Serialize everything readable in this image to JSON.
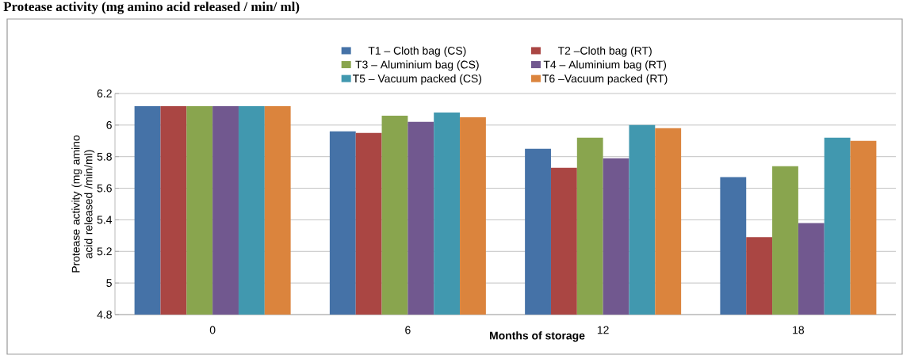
{
  "chart_data": {
    "type": "bar",
    "title": "Protease activity (mg amino acid released / min/ ml)",
    "xlabel": "Months of storage",
    "ylabel": "Protease activity (mg amino acid released /min/ml)",
    "categories": [
      "0",
      "6",
      "12",
      "18"
    ],
    "series": [
      {
        "name": "T1 – Cloth bag (CS)",
        "color": "#4572a7",
        "values": [
          6.12,
          5.96,
          5.85,
          5.67
        ]
      },
      {
        "name": "T2 –Cloth bag (RT)",
        "color": "#aa4643",
        "values": [
          6.12,
          5.95,
          5.73,
          5.29
        ]
      },
      {
        "name": "T3 – Aluminium bag (CS)",
        "color": "#89a54e",
        "values": [
          6.12,
          6.06,
          5.92,
          5.74
        ]
      },
      {
        "name": "T4 – Aluminium bag (RT)",
        "color": "#71588f",
        "values": [
          6.12,
          6.02,
          5.79,
          5.38
        ]
      },
      {
        "name": "T5 –  Vacuum packed  (CS)",
        "color": "#4198af",
        "values": [
          6.12,
          6.08,
          6.0,
          5.92
        ]
      },
      {
        "name": "T6 –Vacuum packed (RT)",
        "color": "#db843d",
        "values": [
          6.12,
          6.05,
          5.98,
          5.9
        ]
      }
    ],
    "ylim": [
      4.8,
      6.2
    ],
    "yticks": [
      4.8,
      5,
      5.2,
      5.4,
      5.6,
      5.8,
      6,
      6.2
    ],
    "grid": "y",
    "legend": "top"
  }
}
